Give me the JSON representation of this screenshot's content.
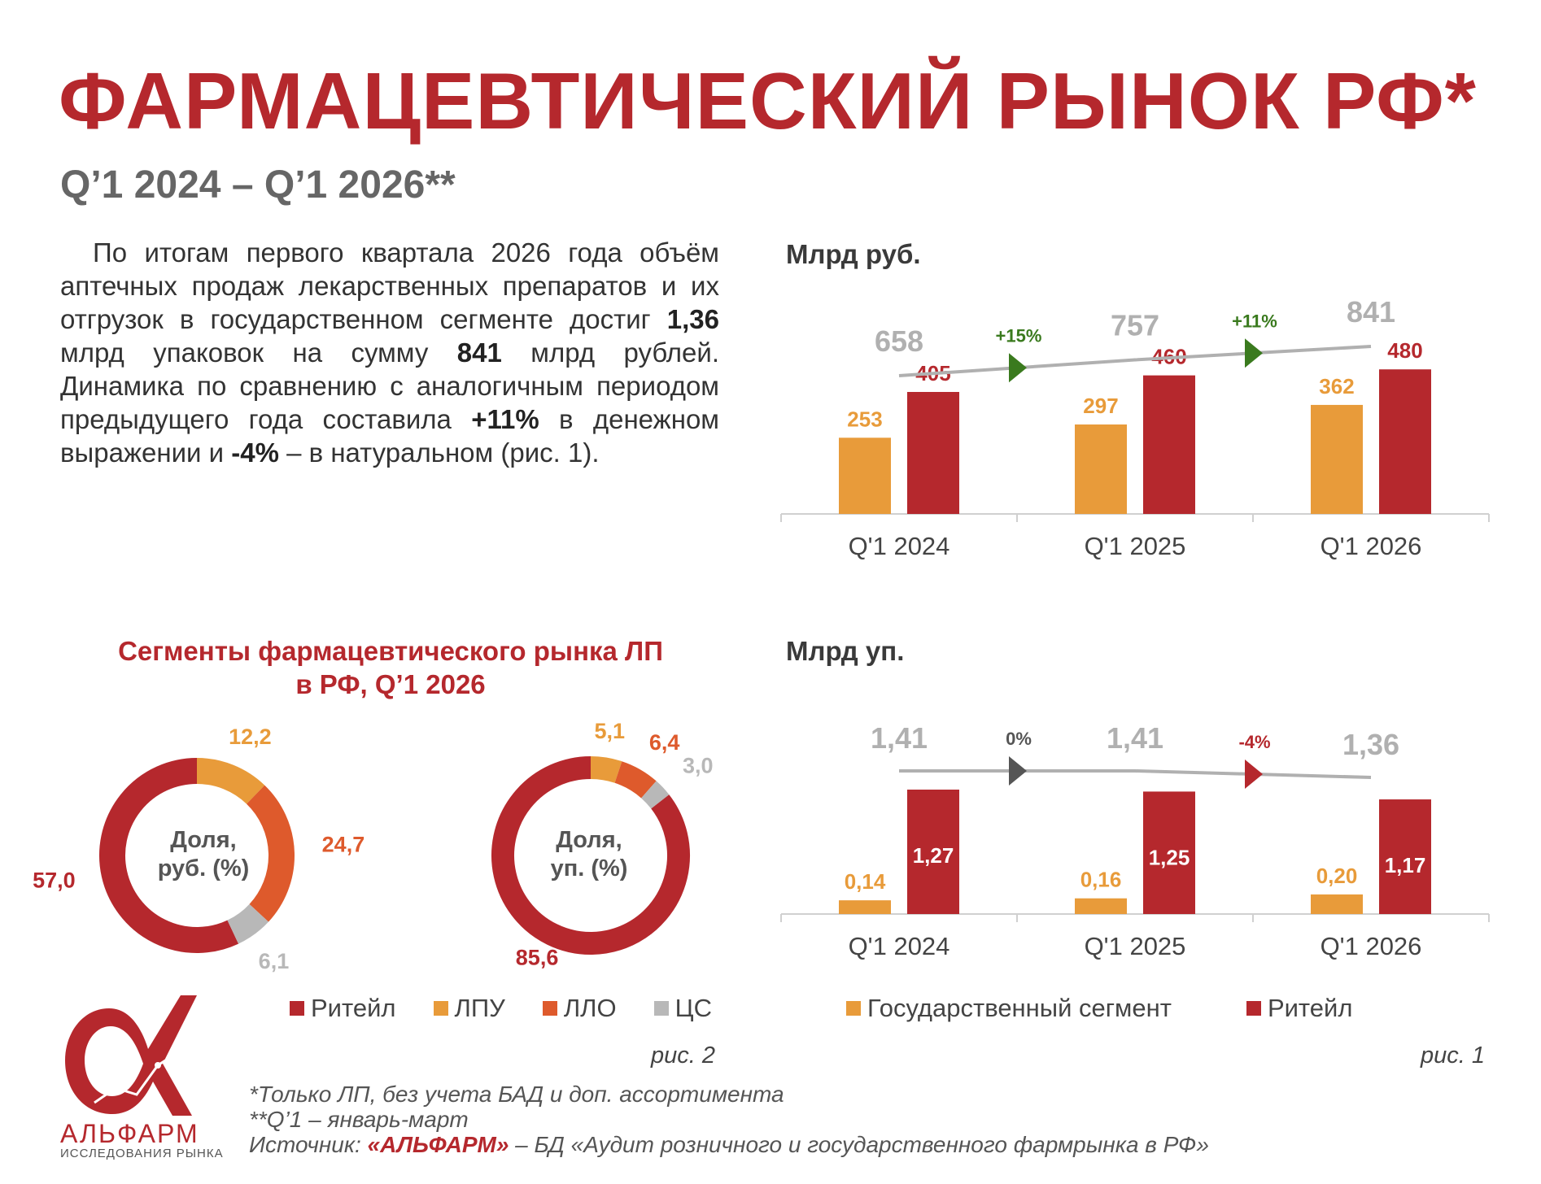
{
  "header": {
    "title": "ФАРМАЦЕВТИЧЕСКИЙ РЫНОК РФ*",
    "subtitle": "Q’1 2024 – Q’1 2026**"
  },
  "intro": {
    "p1": "По итогам первого квартала 2026 года объём аптечных продаж лекарственных препаратов и их отгрузок в государственном сегменте достиг ",
    "b1": "1,36",
    "p2": " млрд упаковок на сумму ",
    "b2": "841",
    "p3": " млрд рублей. Динамика по сравнению с аналогичным периодом предыдущего года составила ",
    "b3": "+11%",
    "p4": " в денежном выражении и ",
    "b4": "-4%",
    "p5": " – в натуральном (рис. 1)."
  },
  "colors": {
    "retail": "#b5282d",
    "gov": "#e89b3a",
    "llo": "#de5a2c",
    "cs": "#b8b8b8",
    "trend": "#b0b0b0",
    "growth": "#3a7a1e",
    "flat": "#555555",
    "decline": "#b5282d"
  },
  "chart_data": [
    {
      "type": "bar",
      "ylabel": "Млрд руб.",
      "categories": [
        "Q'1 2024",
        "Q'1 2025",
        "Q'1 2026"
      ],
      "series": [
        {
          "name": "Государственный сегмент",
          "values": [
            253,
            297,
            362
          ],
          "labels": [
            "253",
            "297",
            "362"
          ]
        },
        {
          "name": "Ритейл",
          "values": [
            405,
            460,
            480
          ],
          "labels": [
            "405",
            "460",
            "480"
          ]
        }
      ],
      "totals": {
        "values": [
          658,
          757,
          841
        ],
        "labels": [
          "658",
          "757",
          "841"
        ]
      },
      "changes": [
        {
          "label": "+15%",
          "direction": "up"
        },
        {
          "label": "+11%",
          "direction": "up"
        }
      ],
      "ylim": [
        0,
        900
      ]
    },
    {
      "type": "bar",
      "ylabel": "Млрд уп.",
      "categories": [
        "Q'1 2024",
        "Q'1 2025",
        "Q'1 2026"
      ],
      "series": [
        {
          "name": "Государственный сегмент",
          "values": [
            0.14,
            0.16,
            0.2
          ],
          "labels": [
            "0,14",
            "0,16",
            "0,20"
          ]
        },
        {
          "name": "Ритейл",
          "values": [
            1.27,
            1.25,
            1.17
          ],
          "labels": [
            "1,27",
            "1,25",
            "1,17"
          ]
        }
      ],
      "totals": {
        "values": [
          1.41,
          1.41,
          1.36
        ],
        "labels": [
          "1,41",
          "1,41",
          "1,36"
        ]
      },
      "changes": [
        {
          "label": "0%",
          "direction": "flat"
        },
        {
          "label": "-4%",
          "direction": "down"
        }
      ],
      "ylim": [
        0,
        1.6
      ]
    },
    {
      "type": "pie",
      "donut": true,
      "center_label": [
        "Доля,",
        "руб. (%)"
      ],
      "slices": [
        {
          "name": "Ритейл",
          "value": 57.0,
          "label": "57,0"
        },
        {
          "name": "ЛПУ",
          "value": 12.2,
          "label": "12,2"
        },
        {
          "name": "ЛЛО",
          "value": 24.7,
          "label": "24,7"
        },
        {
          "name": "ЦС",
          "value": 6.1,
          "label": "6,1"
        }
      ]
    },
    {
      "type": "pie",
      "donut": true,
      "center_label": [
        "Доля,",
        "уп. (%)"
      ],
      "slices": [
        {
          "name": "Ритейл",
          "value": 85.6,
          "label": "85,6"
        },
        {
          "name": "ЛПУ",
          "value": 5.1,
          "label": "5,1"
        },
        {
          "name": "ЛЛО",
          "value": 6.4,
          "label": "6,4"
        },
        {
          "name": "ЦС",
          "value": 3.0,
          "label": "3,0"
        }
      ]
    }
  ],
  "donut_section": {
    "title_line1": "Сегменты фармацевтического рынка ЛП",
    "title_line2": "в РФ, Q’1 2026",
    "legend": [
      "Ритейл",
      "ЛПУ",
      "ЛЛО",
      "ЦС"
    ],
    "fig": "рис. 2"
  },
  "bar_legend": {
    "gov": "Государственный сегмент",
    "retail": "Ритейл",
    "fig": "рис. 1"
  },
  "notes": {
    "n1": "*Только ЛП, без учета БАД и доп. ассортимента",
    "n2": "**Q’1 – январь-март",
    "source_prefix": "Источник: ",
    "source_brand": "«АЛЬФАРМ»",
    "source_rest": " – БД «Аудит розничного и государственного фармрынка в РФ»"
  },
  "logo": {
    "name": "АЛЬФАРМ",
    "sub": "ИССЛЕДОВАНИЯ РЫНКА",
    "icon": "alpha-logo-icon"
  }
}
